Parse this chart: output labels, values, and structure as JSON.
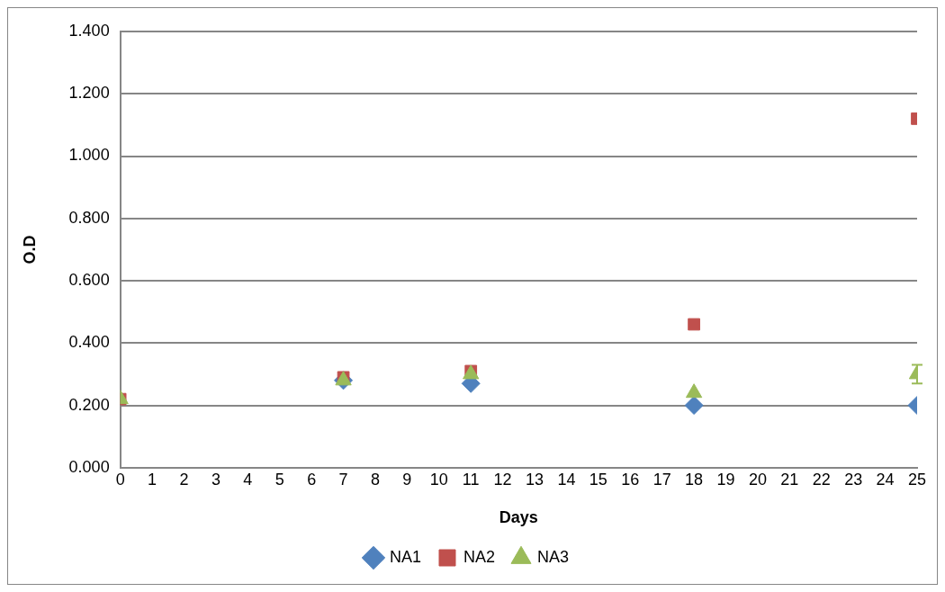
{
  "chart_data": {
    "type": "scatter",
    "xlabel": "Days",
    "ylabel": "O.D",
    "x": [
      0,
      7,
      11,
      18,
      25
    ],
    "series": [
      {
        "name": "NA1",
        "color": "#4f81bd",
        "marker": "diamond",
        "values": [
          null,
          0.28,
          0.27,
          0.2,
          0.2
        ]
      },
      {
        "name": "NA2",
        "color": "#c0504d",
        "marker": "square",
        "values": [
          0.22,
          0.29,
          0.31,
          0.46,
          1.12
        ]
      },
      {
        "name": "NA3",
        "color": "#9bbb59",
        "marker": "triangle",
        "values": [
          0.22,
          0.28,
          0.3,
          0.24,
          0.3
        ],
        "errors": [
          null,
          null,
          null,
          null,
          0.03
        ]
      }
    ],
    "xlim": [
      0,
      25
    ],
    "xticks": [
      0,
      1,
      2,
      3,
      4,
      5,
      6,
      7,
      8,
      9,
      10,
      11,
      12,
      13,
      14,
      15,
      16,
      17,
      18,
      19,
      20,
      21,
      22,
      23,
      24,
      25
    ],
    "ylim": [
      0,
      1.4
    ],
    "yticks": [
      {
        "value": 0,
        "label": "0.000"
      },
      {
        "value": 0.2,
        "label": "0.200"
      },
      {
        "value": 0.4,
        "label": "0.400"
      },
      {
        "value": 0.6,
        "label": "0.600"
      },
      {
        "value": 0.8,
        "label": "0.800"
      },
      {
        "value": 1.0,
        "label": "1.000"
      },
      {
        "value": 1.2,
        "label": "1.200"
      },
      {
        "value": 1.4,
        "label": "1.400"
      }
    ],
    "grid": "y",
    "legend": "bottom"
  }
}
